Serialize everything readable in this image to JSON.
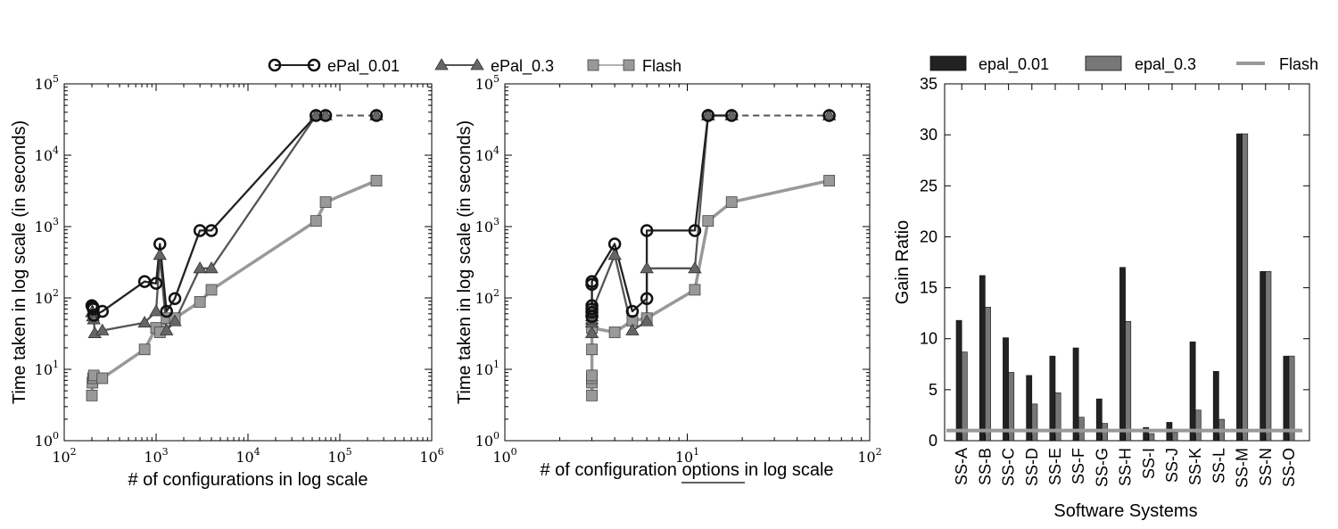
{
  "chart_data": [
    {
      "type": "line",
      "xscale": "log",
      "yscale": "log",
      "xlim": [
        100,
        1000000
      ],
      "ylim": [
        1,
        100000
      ],
      "x_ticks": [
        "10^2",
        "10^3",
        "10^4",
        "10^5",
        "10^6"
      ],
      "y_ticks": [
        "10^0",
        "10^1",
        "10^2",
        "10^3",
        "10^4",
        "10^5"
      ],
      "xlabel": "# of configurations in log scale",
      "ylabel": "Time taken in log scale (in seconds)",
      "legend_position": "top",
      "series": [
        {
          "name": "ePal_0.01",
          "marker": "circle",
          "color": "#222222",
          "points": [
            [
              200,
              78
            ],
            [
              205,
              75
            ],
            [
              207,
              70
            ],
            [
              210,
              57
            ],
            [
              260,
              65
            ],
            [
              750,
              170
            ],
            [
              1000,
              160
            ],
            [
              1100,
              570
            ],
            [
              1300,
              65
            ],
            [
              1600,
              98
            ],
            [
              3000,
              880
            ],
            [
              4000,
              880
            ],
            [
              55000,
              36000
            ],
            [
              70000,
              36000
            ]
          ],
          "dashed_points": [
            [
              70000,
              36000
            ],
            [
              250000,
              36000
            ]
          ]
        },
        {
          "name": "ePal_0.3",
          "marker": "triangle",
          "color": "#555555",
          "points": [
            [
              200,
              63
            ],
            [
              205,
              55
            ],
            [
              210,
              50
            ],
            [
              215,
              32
            ],
            [
              260,
              35
            ],
            [
              750,
              45
            ],
            [
              1000,
              65
            ],
            [
              1100,
              400
            ],
            [
              1300,
              35
            ],
            [
              1600,
              47
            ],
            [
              3000,
              260
            ],
            [
              4000,
              260
            ],
            [
              55000,
              36000
            ],
            [
              70000,
              36000
            ]
          ],
          "dashed_points": [
            [
              70000,
              36000
            ],
            [
              250000,
              36000
            ]
          ]
        },
        {
          "name": "Flash",
          "marker": "square",
          "color": "#999999",
          "points": [
            [
              200,
              4.3
            ],
            [
              203,
              6.5
            ],
            [
              206,
              7.5
            ],
            [
              210,
              8.2
            ],
            [
              260,
              7.5
            ],
            [
              750,
              19
            ],
            [
              1000,
              38
            ],
            [
              1100,
              33
            ],
            [
              1300,
              52
            ],
            [
              1600,
              52
            ],
            [
              3000,
              88
            ],
            [
              4000,
              130
            ],
            [
              55000,
              1200
            ],
            [
              70000,
              2200
            ],
            [
              250000,
              4400
            ]
          ]
        }
      ]
    },
    {
      "type": "line",
      "xscale": "log",
      "yscale": "log",
      "xlim": [
        1,
        100
      ],
      "ylim": [
        1,
        100000
      ],
      "x_ticks": [
        "10^0",
        "10^1",
        "10^2"
      ],
      "y_ticks": [
        "10^0",
        "10^1",
        "10^2",
        "10^3",
        "10^4",
        "10^5"
      ],
      "xlabel_parts": [
        "# of configuration ",
        "options",
        " in log scale"
      ],
      "ylabel": "Time taken in log scale (in seconds)",
      "series": [
        {
          "name": "ePal_0.01",
          "marker": "circle",
          "color": "#222222",
          "points": [
            [
              3,
              55
            ],
            [
              3,
              63
            ],
            [
              3,
              70
            ],
            [
              3,
              78
            ],
            [
              3,
              155
            ],
            [
              3,
              170
            ],
            [
              4,
              570
            ],
            [
              5,
              65
            ],
            [
              6,
              98
            ],
            [
              6,
              880
            ],
            [
              11,
              880
            ],
            [
              13,
              36000
            ],
            [
              13,
              36000
            ],
            [
              17.5,
              36000
            ]
          ],
          "dashed_points": [
            [
              17.5,
              36000
            ],
            [
              60,
              36000
            ]
          ]
        },
        {
          "name": "ePal_0.3",
          "marker": "triangle",
          "color": "#555555",
          "points": [
            [
              3,
              32
            ],
            [
              3,
              45
            ],
            [
              3,
              50
            ],
            [
              3,
              55
            ],
            [
              3,
              65
            ],
            [
              4,
              400
            ],
            [
              5,
              35
            ],
            [
              6,
              47
            ],
            [
              6,
              260
            ],
            [
              11,
              260
            ],
            [
              13,
              36000
            ],
            [
              13,
              36000
            ],
            [
              17.5,
              36000
            ]
          ],
          "dashed_points": [
            [
              17.5,
              36000
            ],
            [
              60,
              36000
            ]
          ]
        },
        {
          "name": "Flash",
          "marker": "square",
          "color": "#999999",
          "points": [
            [
              3,
              4.3
            ],
            [
              3,
              6.5
            ],
            [
              3,
              7.5
            ],
            [
              3,
              8.2
            ],
            [
              3,
              19
            ],
            [
              3,
              38
            ],
            [
              4,
              33
            ],
            [
              5,
              48
            ],
            [
              6,
              52
            ],
            [
              11,
              130
            ],
            [
              13,
              1200
            ],
            [
              17.5,
              2200
            ],
            [
              60,
              4400
            ]
          ]
        }
      ]
    },
    {
      "type": "bar",
      "categories": [
        "SS-A",
        "SS-B",
        "SS-C",
        "SS-D",
        "SS-E",
        "SS-F",
        "SS-G",
        "SS-H",
        "SS-I",
        "SS-J",
        "SS-K",
        "SS-L",
        "SS-M",
        "SS-N",
        "SS-O"
      ],
      "series": [
        {
          "name": "epal_0.01",
          "color": "#222222",
          "values": [
            11.8,
            16.2,
            10.1,
            6.4,
            8.3,
            9.1,
            4.1,
            17.0,
            1.3,
            1.8,
            9.7,
            6.8,
            30.1,
            16.6,
            8.3
          ]
        },
        {
          "name": "epal_0.3",
          "color": "#777777",
          "values": [
            8.7,
            13.1,
            6.7,
            3.6,
            4.7,
            2.3,
            1.7,
            11.7,
            0.7,
            0.8,
            3.0,
            2.1,
            30.1,
            16.6,
            8.3
          ]
        },
        {
          "name": "Flash",
          "color": "#999999",
          "type": "hline",
          "value": 1.0
        }
      ],
      "ylim": [
        0,
        35
      ],
      "y_ticks": [
        "0",
        "5",
        "10",
        "15",
        "20",
        "25",
        "30",
        "35"
      ],
      "xlabel": "Software Systems",
      "ylabel": "Gain Ratio",
      "legend_position": "top"
    }
  ]
}
